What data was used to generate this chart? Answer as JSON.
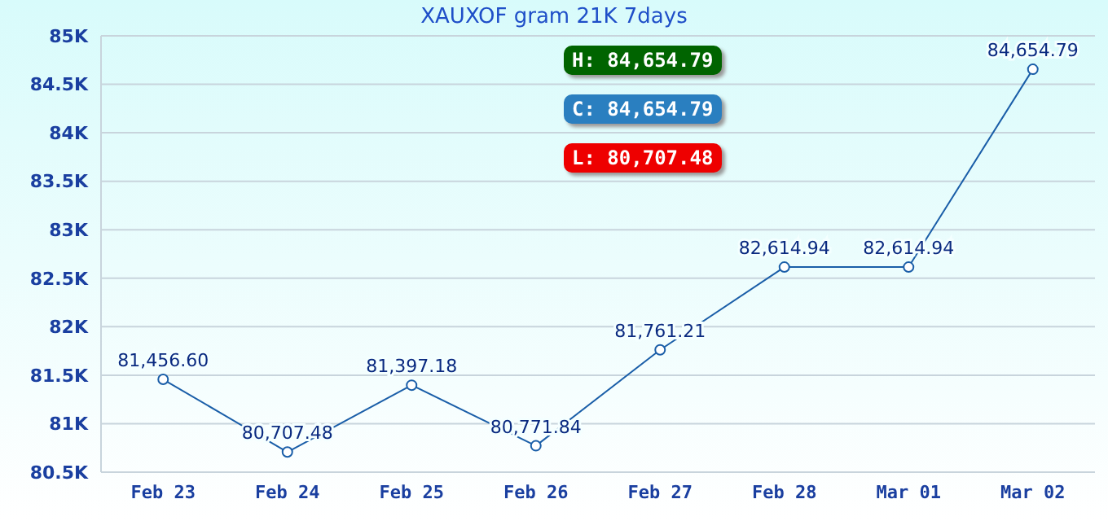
{
  "chart_data": {
    "type": "line",
    "title": "XAUXOF gram 21K 7days",
    "categories": [
      "Feb 23",
      "Feb 24",
      "Feb 25",
      "Feb 26",
      "Feb 27",
      "Feb 28",
      "Mar 01",
      "Mar 02"
    ],
    "series": [
      {
        "color": "#1a5ea8",
        "values": [
          81456.6,
          80707.48,
          81397.18,
          80771.84,
          81761.21,
          82614.94,
          82614.94,
          84654.79
        ],
        "value_labels": [
          "81,456.60",
          "80,707.48",
          "81,397.18",
          "80,771.84",
          "81,761.21",
          "82,614.94",
          "82,614.94",
          "84,654.79"
        ]
      }
    ],
    "ylim": [
      80500,
      85000
    ],
    "yticks": [
      {
        "value": 80500,
        "label": "80.5K"
      },
      {
        "value": 81000,
        "label": "81K"
      },
      {
        "value": 81500,
        "label": "81.5K"
      },
      {
        "value": 82000,
        "label": "82K"
      },
      {
        "value": 82500,
        "label": "82.5K"
      },
      {
        "value": 83000,
        "label": "83K"
      },
      {
        "value": 83500,
        "label": "83.5K"
      },
      {
        "value": 84000,
        "label": "84K"
      },
      {
        "value": 84500,
        "label": "84.5K"
      },
      {
        "value": 85000,
        "label": "85K"
      }
    ],
    "annotations": [
      "H: 84,654.79",
      "C: 84,654.79",
      "L: 80,707.48"
    ],
    "grid": "y",
    "marker": "circle",
    "line_style": "solid"
  }
}
